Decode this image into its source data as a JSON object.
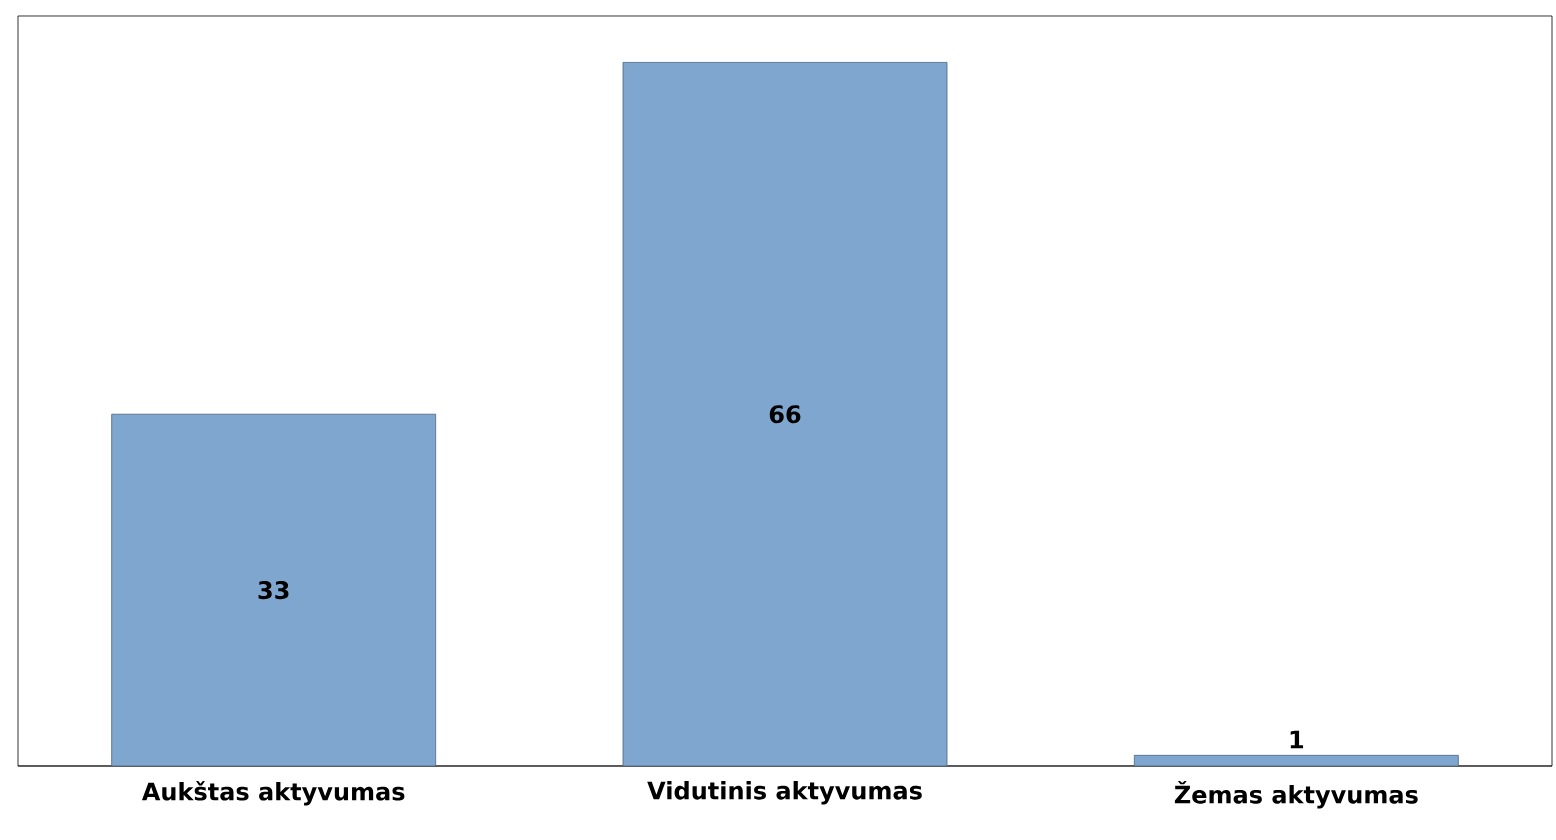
{
  "chart_data": {
    "type": "bar",
    "categories": [
      "Aukštas aktyvumas",
      "Vidutinis aktyvumas",
      "Žemas aktyvumas"
    ],
    "values": [
      33,
      66,
      1
    ],
    "color": "#7fa6cf",
    "data_labels": true
  }
}
